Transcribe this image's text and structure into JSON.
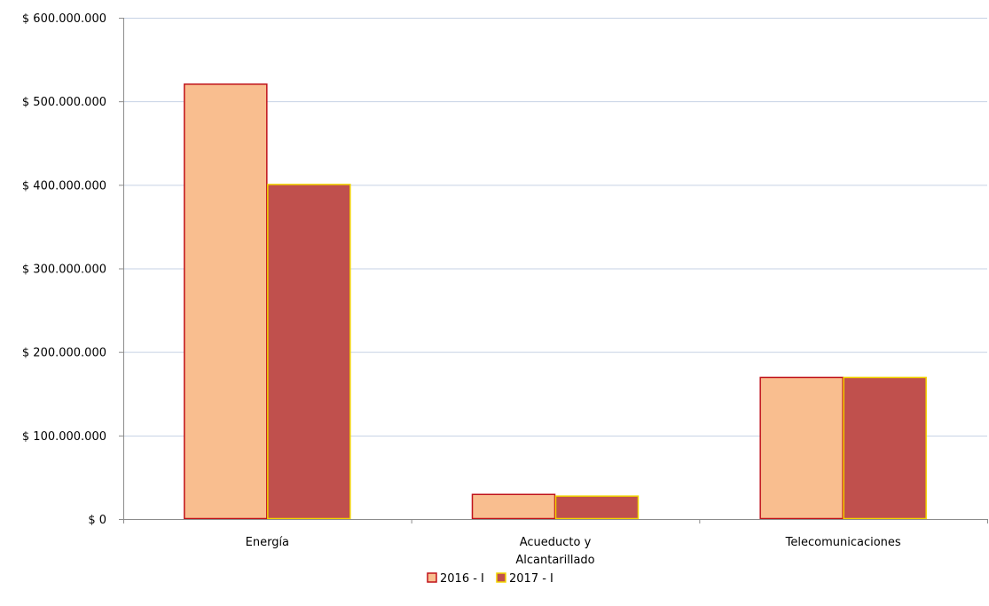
{
  "chart_data": {
    "type": "bar",
    "title": "",
    "xlabel": "",
    "ylabel": "",
    "categories": [
      [
        "Energía"
      ],
      [
        "Acueducto y",
        "Alcantarillado"
      ],
      [
        "Telecomunicaciones"
      ]
    ],
    "series": [
      {
        "name": "2016 - I",
        "values": [
          521000000,
          30000000,
          170000000
        ],
        "fill": "#F9BE8F",
        "stroke": "#C0121A"
      },
      {
        "name": "2017 - I",
        "values": [
          401000000,
          28000000,
          170000000
        ],
        "fill": "#C0504D",
        "stroke": "#F2D500"
      }
    ],
    "ylim": [
      0,
      600000000
    ],
    "y_ticks": [
      0,
      100000000,
      200000000,
      300000000,
      400000000,
      500000000,
      600000000
    ],
    "y_tick_labels": [
      "$ 0",
      "$ 100.000.000",
      "$ 200.000.000",
      "$ 300.000.000",
      "$ 400.000.000",
      "$ 500.000.000",
      "$ 600.000.000"
    ],
    "grid": true,
    "grid_color": "#C6D2E4",
    "axis_color": "#8C8C8C",
    "legend_position": "bottom"
  }
}
